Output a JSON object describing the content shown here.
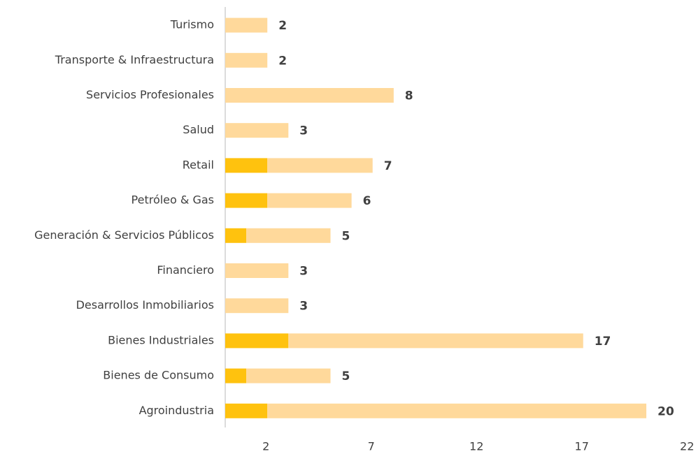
{
  "chart_data": {
    "type": "stacked-barh",
    "categories": [
      "Turismo",
      "Transporte & Infraestructura",
      "Servicios Profesionales",
      "Salud",
      "Retail",
      "Petróleo & Gas",
      "Generación & Servicios Públicos",
      "Financiero",
      "Desarrollos Inmobiliarios",
      "Bienes Industriales",
      "Bienes de Consumo",
      "Agroindustria"
    ],
    "series": [
      {
        "color": "#ffc20e",
        "values": [
          0,
          0,
          0,
          0,
          2,
          2,
          1,
          0,
          0,
          3,
          1,
          2
        ]
      },
      {
        "color": "#ffd99b",
        "values": [
          2,
          2,
          8,
          3,
          5,
          4,
          4,
          3,
          3,
          14,
          4,
          18
        ]
      }
    ],
    "totals": [
      2,
      2,
      8,
      3,
      7,
      6,
      5,
      3,
      3,
      17,
      5,
      20
    ],
    "xlim": [
      0,
      22
    ],
    "xticks": [
      2,
      7,
      12,
      17,
      22
    ]
  }
}
